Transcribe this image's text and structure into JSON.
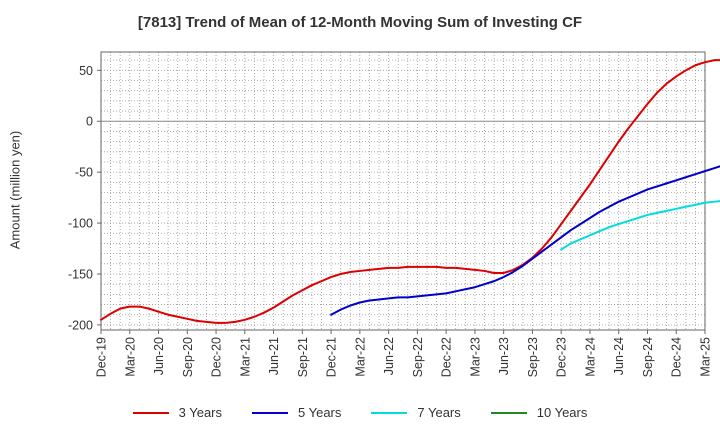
{
  "chart_data": {
    "type": "line",
    "title": "[7813]  Trend of Mean of 12-Month Moving Sum of Investing CF",
    "ylabel": "Amount (million yen)",
    "xlabel": "",
    "ylim": [
      -205,
      68
    ],
    "yticks": [
      50,
      0,
      -50,
      -100,
      -150,
      -200
    ],
    "x_tick_labels": [
      "Dec-19",
      "Mar-20",
      "Jun-20",
      "Sep-20",
      "Dec-20",
      "Mar-21",
      "Jun-21",
      "Sep-21",
      "Dec-21",
      "Mar-22",
      "Jun-22",
      "Sep-22",
      "Dec-22",
      "Mar-23",
      "Jun-23",
      "Sep-23",
      "Dec-23",
      "Mar-24",
      "Jun-24",
      "Sep-24",
      "Dec-24",
      "Mar-25"
    ],
    "grid": true,
    "legend_position": "bottom",
    "series": [
      {
        "name": "3 Years",
        "color": "#dd0000",
        "start_month": "Dec-19",
        "values": [
          -195,
          -189,
          -184,
          -182,
          -182,
          -184,
          -187,
          -190,
          -192,
          -194,
          -196,
          -197,
          -198,
          -198,
          -197,
          -195,
          -192,
          -188,
          -183,
          -177,
          -171,
          -166,
          -161,
          -157,
          -153,
          -150,
          -148,
          -147,
          -146,
          -145,
          -144,
          -144,
          -143,
          -143,
          -143,
          -143,
          -144,
          -144,
          -145,
          -146,
          -147,
          -149,
          -149,
          -146,
          -141,
          -134,
          -125,
          -114,
          -101,
          -88,
          -75,
          -62,
          -48,
          -34,
          -20,
          -7,
          5,
          17,
          28,
          37,
          44,
          50,
          55,
          58,
          60,
          60,
          60,
          59,
          57,
          55,
          51
        ]
      },
      {
        "name": "5 Years",
        "color": "#0000cc",
        "start_month": "Dec-21",
        "values": [
          -190,
          -185,
          -181,
          -178,
          -176,
          -175,
          -174,
          -173,
          -173,
          -172,
          -171,
          -170,
          -169,
          -167,
          -165,
          -163,
          -160,
          -157,
          -153,
          -148,
          -142,
          -135,
          -128,
          -121,
          -114,
          -107,
          -101,
          -95,
          -89,
          -84,
          -79,
          -75,
          -71,
          -67,
          -64,
          -61,
          -58,
          -55,
          -52,
          -49,
          -46,
          -43,
          -40,
          -37,
          -35,
          -34,
          -33,
          -33,
          -34,
          -35,
          -38
        ]
      },
      {
        "name": "7 Years",
        "color": "#00dddd",
        "start_month": "Dec-23",
        "values": [
          -126,
          -120,
          -116,
          -112,
          -108,
          -104,
          -101,
          -98,
          -95,
          -92,
          -90,
          -88,
          -86,
          -84,
          -82,
          -80,
          -79,
          -78,
          -77,
          -76
        ]
      },
      {
        "name": "10 Years",
        "color": "#228822",
        "start_month": "Dec-24",
        "values": []
      }
    ]
  }
}
